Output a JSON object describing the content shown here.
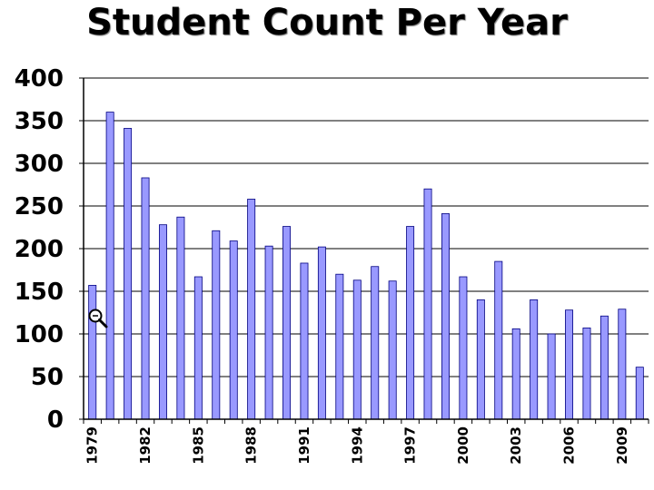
{
  "chart_data": {
    "type": "bar",
    "title": "Student Count Per Year",
    "xlabel": "",
    "ylabel": "",
    "ylim": [
      0,
      400
    ],
    "yticks": [
      0,
      50,
      100,
      150,
      200,
      250,
      300,
      350,
      400
    ],
    "grid": true,
    "categories": [
      "1979",
      "1980",
      "1981",
      "1982",
      "1983",
      "1984",
      "1985",
      "1986",
      "1987",
      "1988",
      "1989",
      "1990",
      "1991",
      "1992",
      "1993",
      "1994",
      "1995",
      "1996",
      "1997",
      "1998",
      "1999",
      "2000",
      "2001",
      "2002",
      "2003",
      "2004",
      "2005",
      "2006",
      "2007",
      "2008",
      "2009",
      "2010"
    ],
    "tick_labels": [
      "1979",
      "1982",
      "1985",
      "1988",
      "1991",
      "1994",
      "1997",
      "2000",
      "2003",
      "2006",
      "2009"
    ],
    "values": [
      157,
      360,
      341,
      283,
      228,
      237,
      167,
      221,
      209,
      258,
      203,
      226,
      183,
      202,
      170,
      163,
      179,
      162,
      226,
      270,
      241,
      167,
      140,
      185,
      106,
      140,
      100,
      128,
      107,
      121,
      129,
      61
    ],
    "bar_color": "#9999ff",
    "bar_edge_color": "#000080",
    "cursor_icon": "magnifier-icon"
  }
}
